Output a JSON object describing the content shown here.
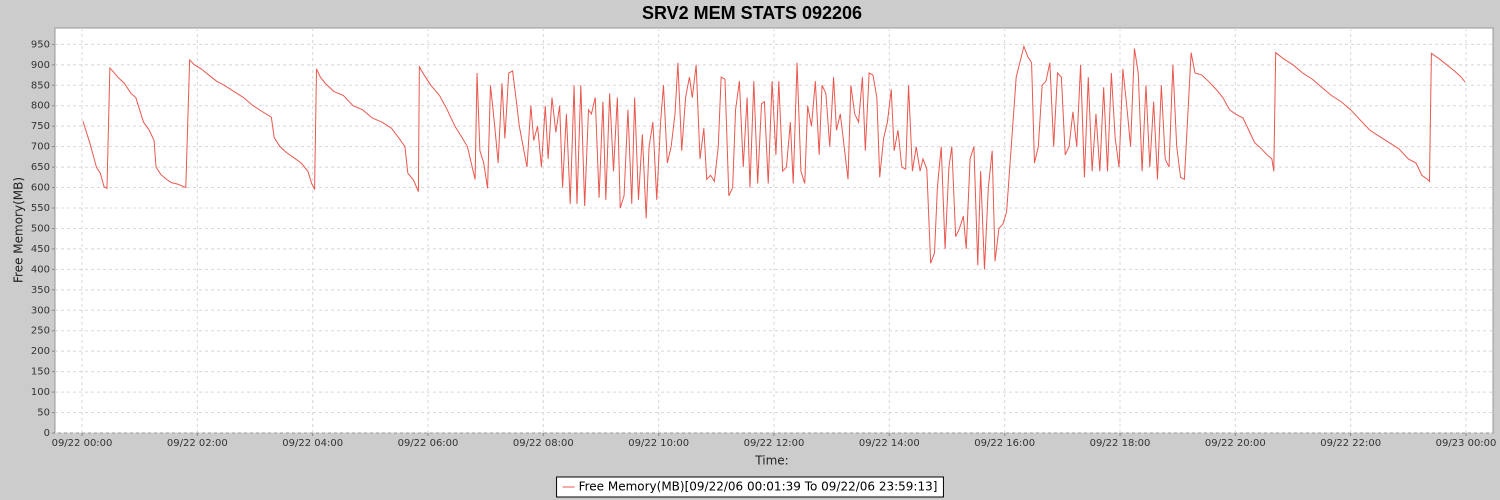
{
  "chart_data": {
    "type": "line",
    "title": "SRV2 MEM STATS  092206",
    "x_label": "Time:",
    "y_label": "Free Memory(MB)",
    "x": [
      "09/22 00:01",
      "09/22 00:08",
      "09/22 00:15",
      "09/22 00:19",
      "09/22 00:23",
      "09/22 00:26",
      "09/22 00:29",
      "09/22 00:33",
      "09/22 00:38",
      "09/22 00:44",
      "09/22 00:51",
      "09/22 00:56",
      "09/22 01:00",
      "09/22 01:04",
      "09/22 01:10",
      "09/22 01:15",
      "09/22 01:17",
      "09/22 01:22",
      "09/22 01:28",
      "09/22 01:33",
      "09/22 01:40",
      "09/22 01:48",
      "09/22 01:52",
      "09/22 01:57",
      "09/22 02:04",
      "09/22 02:12",
      "09/22 02:20",
      "09/22 02:28",
      "09/22 02:38",
      "09/22 02:48",
      "09/22 02:58",
      "09/22 03:08",
      "09/22 03:17",
      "09/22 03:20",
      "09/22 03:26",
      "09/22 03:33",
      "09/22 03:41",
      "09/22 03:48",
      "09/22 03:55",
      "09/22 03:59",
      "09/22 04:02",
      "09/22 04:04",
      "09/22 04:08",
      "09/22 04:13",
      "09/22 04:22",
      "09/22 04:32",
      "09/22 04:42",
      "09/22 04:52",
      "09/22 05:02",
      "09/22 05:12",
      "09/22 05:22",
      "09/22 05:30",
      "09/22 05:36",
      "09/22 05:39",
      "09/22 05:45",
      "09/22 05:50",
      "09/22 05:51",
      "09/22 05:56",
      "09/22 06:03",
      "09/22 06:12",
      "09/22 06:20",
      "09/22 06:28",
      "09/22 06:36",
      "09/22 06:41",
      "09/22 06:45",
      "09/22 06:49",
      "09/22 06:51",
      "09/22 06:54",
      "09/22 06:58",
      "09/22 07:02",
      "09/22 07:05",
      "09/22 07:09",
      "09/22 07:13",
      "09/22 07:17",
      "09/22 07:20",
      "09/22 07:24",
      "09/22 07:28",
      "09/22 07:32",
      "09/22 07:35",
      "09/22 07:39",
      "09/22 07:43",
      "09/22 07:47",
      "09/22 07:50",
      "09/22 07:54",
      "09/22 07:58",
      "09/22 08:02",
      "09/22 08:05",
      "09/22 08:09",
      "09/22 08:13",
      "09/22 08:17",
      "09/22 08:20",
      "09/22 08:24",
      "09/22 08:28",
      "09/22 08:32",
      "09/22 08:35",
      "09/22 08:39",
      "09/22 08:43",
      "09/22 08:47",
      "09/22 08:50",
      "09/22 08:54",
      "09/22 08:58",
      "09/22 09:02",
      "09/22 09:05",
      "09/22 09:09",
      "09/22 09:13",
      "09/22 09:17",
      "09/22 09:20",
      "09/22 09:24",
      "09/22 09:28",
      "09/22 09:32",
      "09/22 09:35",
      "09/22 09:39",
      "09/22 09:43",
      "09/22 09:47",
      "09/22 09:50",
      "09/22 09:54",
      "09/22 09:58",
      "09/22 10:02",
      "09/22 10:05",
      "09/22 10:09",
      "09/22 10:13",
      "09/22 10:17",
      "09/22 10:20",
      "09/22 10:24",
      "09/22 10:28",
      "09/22 10:32",
      "09/22 10:35",
      "09/22 10:39",
      "09/22 10:43",
      "09/22 10:47",
      "09/22 10:50",
      "09/22 10:54",
      "09/22 10:58",
      "09/22 11:02",
      "09/22 11:05",
      "09/22 11:09",
      "09/22 11:13",
      "09/22 11:17",
      "09/22 11:20",
      "09/22 11:24",
      "09/22 11:28",
      "09/22 11:32",
      "09/22 11:35",
      "09/22 11:39",
      "09/22 11:43",
      "09/22 11:47",
      "09/22 11:50",
      "09/22 11:54",
      "09/22 11:58",
      "09/22 12:02",
      "09/22 12:05",
      "09/22 12:09",
      "09/22 12:13",
      "09/22 12:17",
      "09/22 12:20",
      "09/22 12:24",
      "09/22 12:28",
      "09/22 12:32",
      "09/22 12:35",
      "09/22 12:39",
      "09/22 12:43",
      "09/22 12:47",
      "09/22 12:50",
      "09/22 12:54",
      "09/22 12:58",
      "09/22 13:02",
      "09/22 13:05",
      "09/22 13:09",
      "09/22 13:13",
      "09/22 13:17",
      "09/22 13:20",
      "09/22 13:24",
      "09/22 13:28",
      "09/22 13:32",
      "09/22 13:35",
      "09/22 13:39",
      "09/22 13:43",
      "09/22 13:47",
      "09/22 13:50",
      "09/22 13:54",
      "09/22 13:58",
      "09/22 14:02",
      "09/22 14:05",
      "09/22 14:09",
      "09/22 14:13",
      "09/22 14:17",
      "09/22 14:20",
      "09/22 14:24",
      "09/22 14:28",
      "09/22 14:32",
      "09/22 14:35",
      "09/22 14:39",
      "09/22 14:43",
      "09/22 14:47",
      "09/22 14:50",
      "09/22 14:54",
      "09/22 14:58",
      "09/22 15:02",
      "09/22 15:05",
      "09/22 15:09",
      "09/22 15:13",
      "09/22 15:17",
      "09/22 15:20",
      "09/22 15:24",
      "09/22 15:28",
      "09/22 15:32",
      "09/22 15:35",
      "09/22 15:39",
      "09/22 15:43",
      "09/22 15:47",
      "09/22 15:50",
      "09/22 15:54",
      "09/22 15:58",
      "09/22 16:02",
      "09/22 16:12",
      "09/22 16:20",
      "09/22 16:24",
      "09/22 16:28",
      "09/22 16:31",
      "09/22 16:35",
      "09/22 16:39",
      "09/22 16:43",
      "09/22 16:47",
      "09/22 16:51",
      "09/22 16:55",
      "09/22 16:59",
      "09/22 17:03",
      "09/22 17:07",
      "09/22 17:11",
      "09/22 17:15",
      "09/22 17:19",
      "09/22 17:23",
      "09/22 17:27",
      "09/22 17:31",
      "09/22 17:35",
      "09/22 17:39",
      "09/22 17:43",
      "09/22 17:47",
      "09/22 17:51",
      "09/22 17:55",
      "09/22 17:59",
      "09/22 18:03",
      "09/22 18:07",
      "09/22 18:11",
      "09/22 18:15",
      "09/22 18:19",
      "09/22 18:23",
      "09/22 18:27",
      "09/22 18:31",
      "09/22 18:35",
      "09/22 18:39",
      "09/22 18:43",
      "09/22 18:47",
      "09/22 18:51",
      "09/22 18:55",
      "09/22 18:59",
      "09/22 19:03",
      "09/22 19:07",
      "09/22 19:14",
      "09/22 19:18",
      "09/22 19:25",
      "09/22 19:32",
      "09/22 19:40",
      "09/22 19:47",
      "09/22 19:54",
      "09/22 20:00",
      "09/22 20:08",
      "09/22 20:14",
      "09/22 20:20",
      "09/22 20:27",
      "09/22 20:33",
      "09/22 20:38",
      "09/22 20:40",
      "09/22 20:42",
      "09/22 20:50",
      "09/22 21:00",
      "09/22 21:10",
      "09/22 21:20",
      "09/22 21:30",
      "09/22 21:40",
      "09/22 21:50",
      "09/22 22:00",
      "09/22 22:10",
      "09/22 22:20",
      "09/22 22:30",
      "09/22 22:40",
      "09/22 22:50",
      "09/22 23:00",
      "09/22 23:08",
      "09/22 23:14",
      "09/22 23:20",
      "09/22 23:22",
      "09/22 23:24",
      "09/22 23:32",
      "09/22 23:40",
      "09/22 23:48",
      "09/22 23:55",
      "09/22 23:59"
    ],
    "series": [
      {
        "name": "Free Memory(MB)[09/22/06 00:01:39 To 09/22/06 23:59:13]",
        "color": "#e8584f",
        "values": [
          762,
          710,
          650,
          635,
          602,
          598,
          892,
          882,
          868,
          855,
          830,
          820,
          790,
          760,
          740,
          715,
          650,
          632,
          620,
          612,
          608,
          600,
          912,
          900,
          890,
          875,
          860,
          850,
          835,
          820,
          800,
          785,
          772,
          722,
          700,
          685,
          672,
          660,
          640,
          610,
          595,
          890,
          870,
          855,
          835,
          825,
          800,
          790,
          770,
          760,
          745,
          720,
          700,
          635,
          618,
          590,
          895,
          875,
          850,
          825,
          790,
          750,
          720,
          700,
          660,
          620,
          880,
          690,
          660,
          598,
          850,
          760,
          660,
          855,
          720,
          880,
          885,
          810,
          750,
          700,
          650,
          800,
          715,
          750,
          650,
          800,
          670,
          820,
          735,
          800,
          600,
          780,
          560,
          850,
          560,
          850,
          555,
          790,
          780,
          820,
          575,
          810,
          570,
          830,
          640,
          820,
          550,
          580,
          790,
          560,
          820,
          570,
          730,
          525,
          700,
          760,
          570,
          760,
          850,
          660,
          700,
          780,
          905,
          690,
          820,
          870,
          820,
          900,
          670,
          745,
          620,
          630,
          615,
          700,
          870,
          865,
          580,
          600,
          790,
          860,
          650,
          820,
          600,
          860,
          610,
          805,
          810,
          610,
          860,
          680,
          860,
          640,
          650,
          760,
          610,
          905,
          640,
          610,
          800,
          750,
          860,
          680,
          850,
          830,
          700,
          870,
          740,
          780,
          700,
          620,
          850,
          780,
          760,
          870,
          690,
          880,
          875,
          820,
          625,
          720,
          760,
          840,
          690,
          740,
          650,
          645,
          850,
          640,
          700,
          640,
          670,
          645,
          415,
          440,
          600,
          700,
          450,
          650,
          700,
          480,
          500,
          530,
          450,
          670,
          700,
          410,
          640,
          400,
          600,
          690,
          420,
          500,
          510,
          540,
          870,
          945,
          920,
          905,
          660,
          700,
          850,
          860,
          905,
          700,
          880,
          870,
          680,
          700,
          785,
          700,
          900,
          625,
          870,
          640,
          780,
          640,
          845,
          640,
          880,
          720,
          650,
          890,
          800,
          700,
          940,
          880,
          640,
          850,
          650,
          810,
          620,
          850,
          670,
          650,
          900,
          700,
          625,
          620,
          930,
          880,
          875,
          860,
          840,
          820,
          790,
          780,
          770,
          740,
          710,
          695,
          680,
          670,
          640,
          930,
          915,
          900,
          880,
          865,
          845,
          825,
          810,
          790,
          765,
          740,
          725,
          710,
          695,
          670,
          660,
          630,
          620,
          615,
          928,
          915,
          900,
          885,
          870,
          858
        ]
      }
    ],
    "xlim": [
      "09/22 00:00",
      "09/23 00:00"
    ],
    "xticks": [
      "09/22 00:00",
      "09/22 02:00",
      "09/22 04:00",
      "09/22 06:00",
      "09/22 08:00",
      "09/22 10:00",
      "09/22 12:00",
      "09/22 14:00",
      "09/22 16:00",
      "09/22 18:00",
      "09/22 20:00",
      "09/22 22:00",
      "09/23 00:00"
    ],
    "ylim": [
      0,
      990
    ],
    "yticks": [
      0,
      50,
      100,
      150,
      200,
      250,
      300,
      350,
      400,
      450,
      500,
      550,
      600,
      650,
      700,
      750,
      800,
      850,
      900,
      950
    ],
    "grid": true,
    "legend": "bottom"
  }
}
